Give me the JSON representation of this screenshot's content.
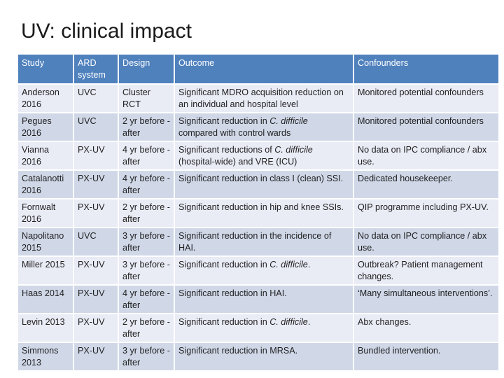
{
  "slide": {
    "title": "UV: clinical impact"
  },
  "table": {
    "headers": [
      "Study",
      "ARD system",
      "Design",
      "Outcome",
      "Confounders"
    ],
    "rows": [
      {
        "study": "Anderson 2016",
        "ard": "UVC",
        "design": "Cluster RCT",
        "outcome_pre": "Significant MDRO acquisition reduction on an individual and hospital level",
        "outcome_em": "",
        "outcome_post": "",
        "confounders": "Monitored potential confounders"
      },
      {
        "study": "Pegues 2016",
        "ard": "UVC",
        "design": "2 yr before - after",
        "outcome_pre": "Significant reduction in ",
        "outcome_em": "C. difficile",
        "outcome_post": " compared with control wards",
        "confounders": "Monitored potential confounders"
      },
      {
        "study": "Vianna 2016",
        "ard": "PX-UV",
        "design": "4 yr before - after",
        "outcome_pre": "Significant reductions of ",
        "outcome_em": "C. difficile",
        "outcome_post": " (hospital-wide) and VRE (ICU)",
        "confounders": "No data on IPC compliance / abx use."
      },
      {
        "study": "Catalanotti 2016",
        "ard": "PX-UV",
        "design": "4 yr before - after",
        "outcome_pre": "Significant reduction in class I (clean) SSI.",
        "outcome_em": "",
        "outcome_post": "",
        "confounders": "Dedicated housekeeper."
      },
      {
        "study": "Fornwalt 2016",
        "ard": "PX-UV",
        "design": "2 yr before - after",
        "outcome_pre": "Significant reduction in hip and knee SSIs.",
        "outcome_em": "",
        "outcome_post": "",
        "confounders": "QIP programme including PX-UV."
      },
      {
        "study": "Napolitano 2015",
        "ard": "UVC",
        "design": "3 yr before - after",
        "outcome_pre": "Significant reduction in the incidence of HAI.",
        "outcome_em": "",
        "outcome_post": "",
        "confounders": "No data on IPC compliance / abx use."
      },
      {
        "study": "Miller 2015",
        "ard": "PX-UV",
        "design": "3 yr before - after",
        "outcome_pre": "Significant reduction in ",
        "outcome_em": "C. difficile",
        "outcome_post": ".",
        "confounders": "Outbreak? Patient management changes."
      },
      {
        "study": "Haas 2014",
        "ard": "PX-UV",
        "design": "4 yr before - after",
        "outcome_pre": "Significant reduction in HAI.",
        "outcome_em": "",
        "outcome_post": "",
        "confounders": "‘Many simultaneous interventions’."
      },
      {
        "study": "Levin 2013",
        "ard": "PX-UV",
        "design": "2 yr before - after",
        "outcome_pre": "Significant reduction in ",
        "outcome_em": "C. difficile",
        "outcome_post": ".",
        "confounders": "Abx changes."
      },
      {
        "study": "Simmons 2013",
        "ard": "PX-UV",
        "design": "3 yr before - after",
        "outcome_pre": "Significant reduction in MRSA.",
        "outcome_em": "",
        "outcome_post": "",
        "confounders": "Bundled intervention."
      }
    ]
  },
  "colors": {
    "header": "#4f81bd",
    "row_odd": "#e9ebf5",
    "row_even": "#d0d8e8"
  }
}
